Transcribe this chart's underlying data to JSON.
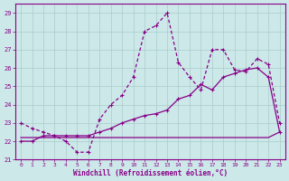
{
  "xlabel": "Windchill (Refroidissement éolien,°C)",
  "bg_color": "#cce8e8",
  "grid_color": "#aacccc",
  "line_color": "#880088",
  "xlim": [
    -0.5,
    23.5
  ],
  "ylim": [
    21,
    29.5
  ],
  "yticks": [
    21,
    22,
    23,
    24,
    25,
    26,
    27,
    28,
    29
  ],
  "xticks": [
    0,
    1,
    2,
    3,
    4,
    5,
    6,
    7,
    8,
    9,
    10,
    11,
    12,
    13,
    14,
    15,
    16,
    17,
    18,
    19,
    20,
    21,
    22,
    23
  ],
  "curve_dashed_y": [
    23.0,
    22.7,
    22.5,
    22.3,
    22.0,
    21.4,
    21.4,
    23.2,
    24.0,
    24.5,
    25.5,
    28.0,
    28.3,
    29.0,
    26.3,
    25.5,
    24.8,
    27.0,
    27.0,
    25.9,
    25.8,
    26.5,
    26.2,
    23.0
  ],
  "curve_diag_y": [
    22.0,
    22.0,
    22.3,
    22.3,
    22.3,
    22.3,
    22.3,
    22.5,
    22.7,
    23.0,
    23.2,
    23.4,
    23.5,
    23.7,
    24.3,
    24.5,
    25.1,
    24.8,
    25.5,
    25.7,
    25.9,
    26.0,
    25.5,
    22.5
  ],
  "curve_flat_y": [
    22.2,
    22.2,
    22.2,
    22.2,
    22.2,
    22.2,
    22.2,
    22.2,
    22.2,
    22.2,
    22.2,
    22.2,
    22.2,
    22.2,
    22.2,
    22.2,
    22.2,
    22.2,
    22.2,
    22.2,
    22.2,
    22.2,
    22.2,
    22.5
  ]
}
